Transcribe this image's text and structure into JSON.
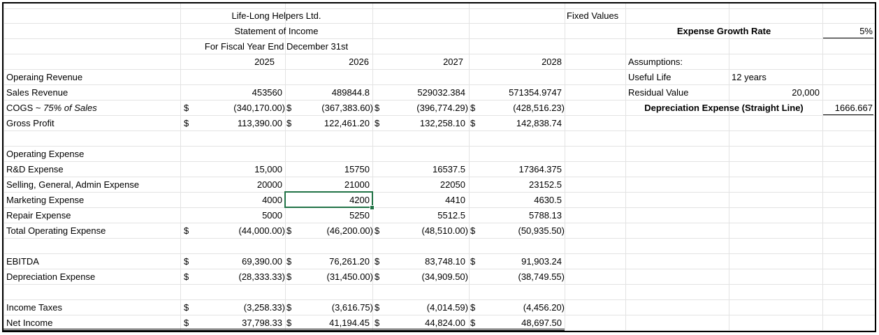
{
  "title": {
    "company": "Life-Long Helpers Ltd.",
    "statement": "Statement of Income",
    "period": "For Fiscal Year End December 31st"
  },
  "years": [
    "2025",
    "2026",
    "2027",
    "2028"
  ],
  "rows": {
    "operating_revenue": {
      "label": "Operaing Revenue"
    },
    "sales_revenue": {
      "label": "Sales Revenue",
      "values": [
        "453560",
        "489844.8",
        "529032.384",
        "571354.9747"
      ]
    },
    "cogs": {
      "label": "COGS ~ ",
      "label_note": "75% of Sales",
      "currency": "$",
      "values": [
        "(340,170.00)",
        "(367,383.60)",
        "(396,774.29)",
        "(428,516.23)"
      ]
    },
    "gross_profit": {
      "label": "Gross Profit",
      "currency": "$",
      "values": [
        "113,390.00",
        "122,461.20",
        "132,258.10",
        "142,838.74"
      ]
    },
    "operating_expense": {
      "label": "Operating Expense"
    },
    "rd_expense": {
      "label": "R&D Expense",
      "values": [
        "15,000",
        "15750",
        "16537.5",
        "17364.375"
      ]
    },
    "sga_expense": {
      "label": "Selling, General, Admin Expense",
      "values": [
        "20000",
        "21000",
        "22050",
        "23152.5"
      ]
    },
    "marketing_expense": {
      "label": "Marketing Expense",
      "values": [
        "4000",
        "4200",
        "4410",
        "4630.5"
      ]
    },
    "repair_expense": {
      "label": "Repair Expense",
      "values": [
        "5000",
        "5250",
        "5512.5",
        "5788.13"
      ]
    },
    "total_operating_expense": {
      "label": "Total Operating Expense",
      "currency": "$",
      "values": [
        "(44,000.00)",
        "(46,200.00)",
        "(48,510.00)",
        "(50,935.50)"
      ]
    },
    "ebitda": {
      "label": "EBITDA",
      "currency": "$",
      "values": [
        "69,390.00",
        "76,261.20",
        "83,748.10",
        "91,903.24"
      ]
    },
    "depreciation_expense": {
      "label": "Depreciation Expense",
      "currency": "$",
      "values": [
        "(28,333.33)",
        "(31,450.00)",
        "(34,909.50)",
        "(38,749.55)"
      ]
    },
    "income_taxes": {
      "label": "Income Taxes",
      "currency": "$",
      "values": [
        "(3,258.33)",
        "(3,616.75)",
        "(4,014.59)",
        "(4,456.20)"
      ]
    },
    "net_income": {
      "label": "Net Income",
      "currency": "$",
      "values": [
        "37,798.33",
        "41,194.45",
        "44,824.00",
        "48,697.50"
      ]
    }
  },
  "fixed": {
    "header": "Fixed Values",
    "growth_label": "Expense Growth Rate",
    "growth_value": "5%",
    "assumptions": "Assumptions:",
    "useful_life_label": "Useful Life",
    "useful_life_value": "12 years",
    "residual_label": "Residual Value",
    "residual_value": "20,000",
    "dep_label": "Depreciation Expense (Straight Line)",
    "dep_value": "1666.667"
  },
  "selection": {
    "cell": "D16",
    "value": "4200"
  },
  "colors": {
    "gridline": "#e3e3e3",
    "selection": "#217346",
    "text": "#000000"
  }
}
